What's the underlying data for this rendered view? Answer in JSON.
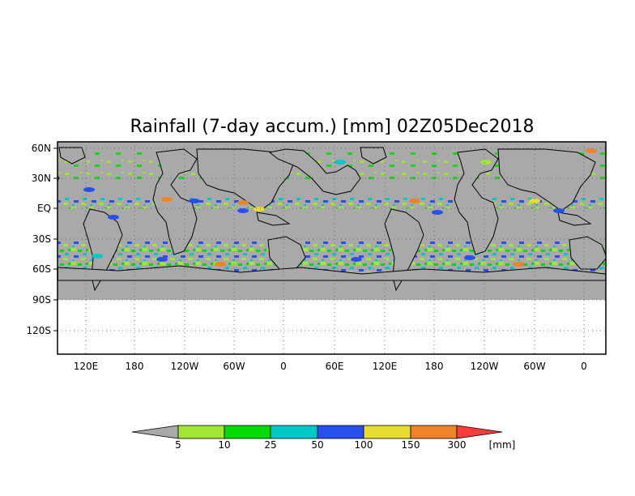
{
  "title": "Rainfall (7-day accum.) [mm] 02Z05Dec2018",
  "map": {
    "longitude_labels": [
      "120E",
      "180",
      "120W",
      "60W",
      "0",
      "60E",
      "120E",
      "180",
      "120W",
      "60W",
      "0"
    ],
    "latitude_labels": [
      "60N",
      "30N",
      "EQ",
      "30S",
      "60S",
      "90S",
      "120S"
    ],
    "data_extent": "60N to 90S",
    "ocean_fill": "#a9a9a9",
    "coastline_color": "#000000",
    "grid": "dotted"
  },
  "colorbar": {
    "ticks": [
      "5",
      "10",
      "25",
      "50",
      "100",
      "150",
      "300"
    ],
    "unit": "[mm]",
    "segments": [
      {
        "range": "< 5",
        "color": "#a9a9a9"
      },
      {
        "range": "5-10",
        "color": "#a0e632"
      },
      {
        "range": "10-25",
        "color": "#00dc00"
      },
      {
        "range": "25-50",
        "color": "#00c8c8"
      },
      {
        "range": "50-100",
        "color": "#2850f0"
      },
      {
        "range": "100-150",
        "color": "#e6dc32"
      },
      {
        "range": "150-300",
        "color": "#f08228"
      },
      {
        "range": "> 300",
        "color": "#fa3c3c"
      }
    ]
  }
}
